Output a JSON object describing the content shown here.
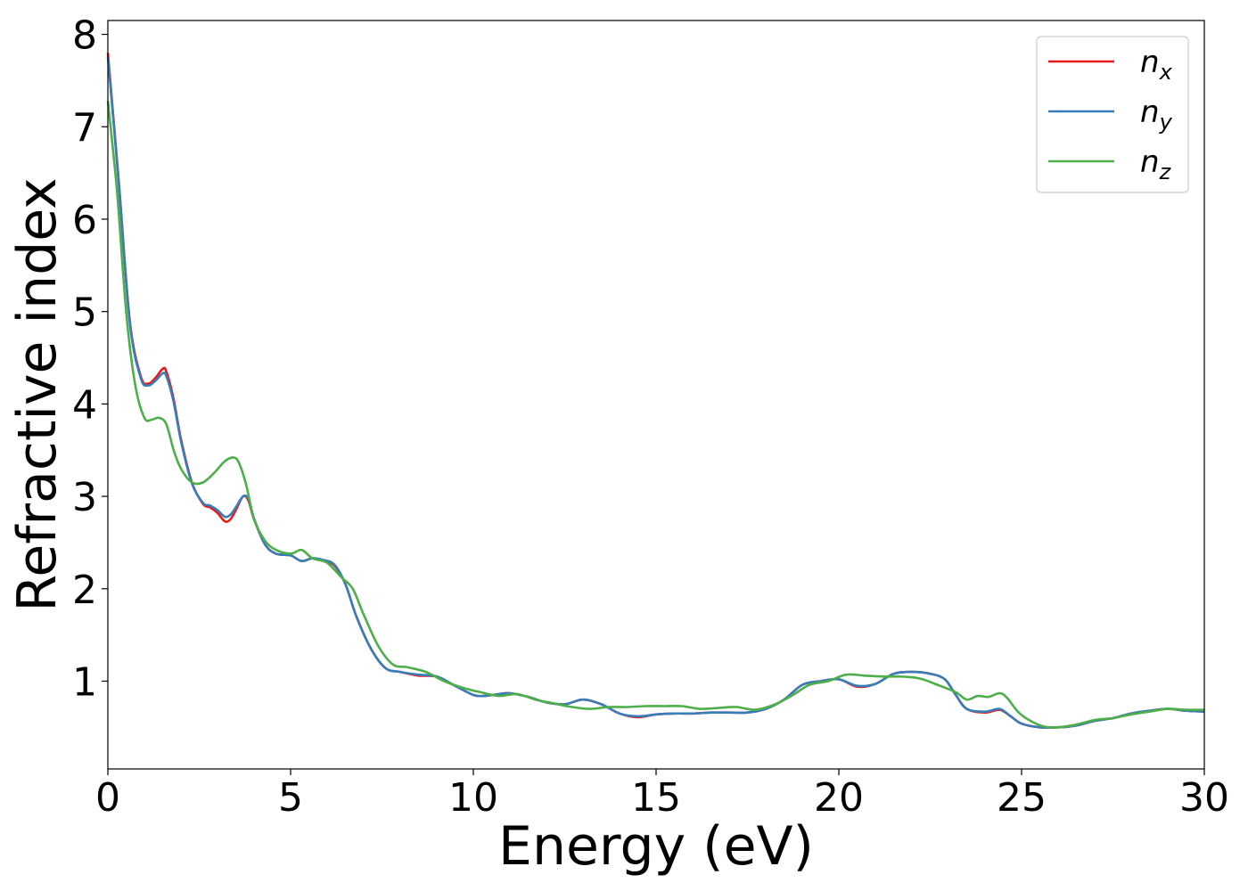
{
  "chart_data": {
    "type": "line",
    "title": "",
    "xlabel": "Energy (eV)",
    "ylabel": "Refractive index",
    "xlim": [
      0,
      30
    ],
    "ylim": [
      0.05,
      8.15
    ],
    "xticks": [
      0,
      5,
      10,
      15,
      20,
      25,
      30
    ],
    "yticks": [
      1,
      2,
      3,
      4,
      5,
      6,
      7,
      8
    ],
    "grid": false,
    "legend_position": "top-right",
    "series": [
      {
        "name": "n",
        "subscript": "x",
        "color": "#e41a1c",
        "x": [
          0,
          0.3,
          0.6,
          0.9,
          1.1,
          1.3,
          1.5,
          1.6,
          1.8,
          2.0,
          2.3,
          2.6,
          2.8,
          3.0,
          3.2,
          3.35,
          3.5,
          3.7,
          3.85,
          4.0,
          4.3,
          4.6,
          5.0,
          5.3,
          5.6,
          5.9,
          6.2,
          6.5,
          6.8,
          7.2,
          7.6,
          8.0,
          8.5,
          9.0,
          9.5,
          10.0,
          10.3,
          10.7,
          11.0,
          11.5,
          12.0,
          12.5,
          13.0,
          13.5,
          14.0,
          14.5,
          15.0,
          15.5,
          16.0,
          16.5,
          17.0,
          17.5,
          18.0,
          18.5,
          19.0,
          19.5,
          20.0,
          20.5,
          21.0,
          21.5,
          22.0,
          22.5,
          22.9,
          23.2,
          23.5,
          24.0,
          24.4,
          24.7,
          25.0,
          25.5,
          26.0,
          26.5,
          27.0,
          27.5,
          28.0,
          28.5,
          29.0,
          29.5,
          30.0
        ],
        "y": [
          7.8,
          6.4,
          4.9,
          4.3,
          4.22,
          4.28,
          4.38,
          4.35,
          4.05,
          3.62,
          3.15,
          2.92,
          2.88,
          2.82,
          2.73,
          2.75,
          2.85,
          3.0,
          2.95,
          2.75,
          2.48,
          2.38,
          2.36,
          2.3,
          2.33,
          2.3,
          2.25,
          2.05,
          1.7,
          1.35,
          1.14,
          1.1,
          1.06,
          1.05,
          0.95,
          0.85,
          0.84,
          0.86,
          0.87,
          0.83,
          0.77,
          0.75,
          0.8,
          0.75,
          0.65,
          0.61,
          0.64,
          0.65,
          0.65,
          0.66,
          0.66,
          0.66,
          0.7,
          0.8,
          0.96,
          1.0,
          1.02,
          0.94,
          0.97,
          1.08,
          1.1,
          1.08,
          1.02,
          0.85,
          0.7,
          0.66,
          0.69,
          0.62,
          0.54,
          0.5,
          0.5,
          0.52,
          0.57,
          0.6,
          0.65,
          0.68,
          0.7,
          0.68,
          0.67
        ]
      },
      {
        "name": "n",
        "subscript": "y",
        "color": "#377eb8",
        "x": [
          0,
          0.3,
          0.6,
          0.9,
          1.1,
          1.3,
          1.5,
          1.6,
          1.8,
          2.0,
          2.3,
          2.6,
          2.8,
          3.0,
          3.2,
          3.35,
          3.5,
          3.7,
          3.85,
          4.0,
          4.3,
          4.6,
          5.0,
          5.3,
          5.6,
          5.9,
          6.2,
          6.5,
          6.8,
          7.2,
          7.6,
          8.0,
          8.5,
          9.0,
          9.5,
          10.0,
          10.3,
          10.7,
          11.0,
          11.5,
          12.0,
          12.5,
          13.0,
          13.5,
          14.0,
          14.5,
          15.0,
          15.5,
          16.0,
          16.5,
          17.0,
          17.5,
          18.0,
          18.5,
          19.0,
          19.5,
          20.0,
          20.5,
          21.0,
          21.5,
          22.0,
          22.5,
          22.9,
          23.2,
          23.5,
          24.0,
          24.4,
          24.7,
          25.0,
          25.5,
          26.0,
          26.5,
          27.0,
          27.5,
          28.0,
          28.5,
          29.0,
          29.5,
          30.0
        ],
        "y": [
          7.76,
          6.38,
          4.88,
          4.28,
          4.2,
          4.25,
          4.33,
          4.3,
          4.02,
          3.6,
          3.14,
          2.93,
          2.9,
          2.85,
          2.78,
          2.8,
          2.88,
          3.0,
          2.97,
          2.76,
          2.48,
          2.38,
          2.36,
          2.3,
          2.33,
          2.31,
          2.26,
          2.05,
          1.7,
          1.35,
          1.14,
          1.1,
          1.07,
          1.05,
          0.95,
          0.85,
          0.84,
          0.86,
          0.87,
          0.83,
          0.77,
          0.75,
          0.8,
          0.75,
          0.65,
          0.62,
          0.64,
          0.65,
          0.65,
          0.66,
          0.66,
          0.66,
          0.7,
          0.8,
          0.96,
          1.0,
          1.02,
          0.95,
          0.97,
          1.08,
          1.1,
          1.08,
          1.02,
          0.85,
          0.7,
          0.67,
          0.7,
          0.62,
          0.54,
          0.5,
          0.5,
          0.52,
          0.57,
          0.6,
          0.65,
          0.68,
          0.7,
          0.68,
          0.67
        ]
      },
      {
        "name": "n",
        "subscript": "z",
        "color": "#4daf4a",
        "x": [
          0,
          0.25,
          0.5,
          0.75,
          1.0,
          1.2,
          1.4,
          1.6,
          1.8,
          2.0,
          2.3,
          2.6,
          2.9,
          3.2,
          3.45,
          3.6,
          3.8,
          4.0,
          4.3,
          4.6,
          5.0,
          5.3,
          5.6,
          6.0,
          6.4,
          6.7,
          7.0,
          7.4,
          7.8,
          8.2,
          8.7,
          9.2,
          9.7,
          10.2,
          10.7,
          11.2,
          11.7,
          12.2,
          12.7,
          13.2,
          13.7,
          14.2,
          14.7,
          15.2,
          15.7,
          16.2,
          16.7,
          17.2,
          17.7,
          18.2,
          18.7,
          19.2,
          19.7,
          20.2,
          20.7,
          21.2,
          21.7,
          22.2,
          22.7,
          23.2,
          23.5,
          23.8,
          24.1,
          24.4,
          24.6,
          24.9,
          25.2,
          25.6,
          26.0,
          26.5,
          27.0,
          27.5,
          28.0,
          28.5,
          29.0,
          29.5,
          30.0
        ],
        "y": [
          7.28,
          6.3,
          5.0,
          4.2,
          3.85,
          3.83,
          3.85,
          3.78,
          3.5,
          3.3,
          3.15,
          3.15,
          3.25,
          3.38,
          3.42,
          3.35,
          3.1,
          2.75,
          2.52,
          2.42,
          2.38,
          2.42,
          2.33,
          2.28,
          2.12,
          2.0,
          1.72,
          1.38,
          1.18,
          1.15,
          1.1,
          1.0,
          0.93,
          0.88,
          0.84,
          0.86,
          0.8,
          0.76,
          0.72,
          0.7,
          0.72,
          0.72,
          0.73,
          0.73,
          0.73,
          0.7,
          0.71,
          0.72,
          0.69,
          0.74,
          0.84,
          0.96,
          1.0,
          1.07,
          1.06,
          1.05,
          1.05,
          1.03,
          0.96,
          0.88,
          0.8,
          0.84,
          0.83,
          0.87,
          0.82,
          0.67,
          0.58,
          0.51,
          0.5,
          0.53,
          0.58,
          0.6,
          0.64,
          0.67,
          0.7,
          0.69,
          0.69
        ]
      }
    ]
  }
}
